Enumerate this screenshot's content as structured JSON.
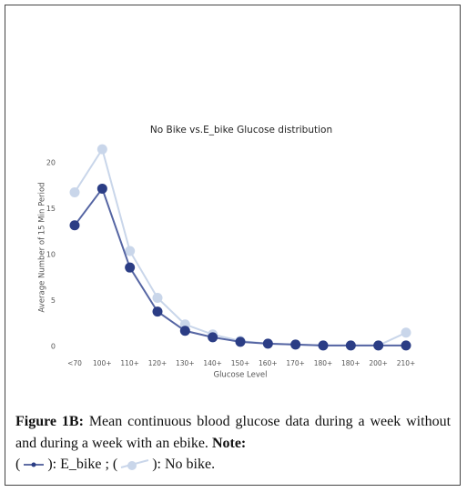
{
  "chart_data": {
    "type": "line",
    "title": "No Bike vs.E_bike Glucose distribution",
    "x_label": "Glucose Level",
    "y_label": "Average Number of 15 Min Period",
    "categories": [
      "<70",
      "100+",
      "110+",
      "120+",
      "130+",
      "140+",
      "150+",
      "160+",
      "170+",
      "180+",
      "180+",
      "200+",
      "210+"
    ],
    "series": [
      {
        "name": "No bike",
        "color": "#c9d6ea",
        "values": [
          16.8,
          21.5,
          10.4,
          5.3,
          2.4,
          1.3,
          0.6,
          0.3,
          0.2,
          0.1,
          0.1,
          0.1,
          1.5
        ]
      },
      {
        "name": "E_bike",
        "color": "#2b3d85",
        "values": [
          13.2,
          17.2,
          8.6,
          3.8,
          1.7,
          1.0,
          0.5,
          0.3,
          0.2,
          0.1,
          0.1,
          0.1,
          0.1
        ]
      }
    ],
    "ylim": [
      -0.9,
      22.4
    ],
    "yticks": [
      0,
      5,
      10,
      15,
      20
    ],
    "grid": false
  },
  "caption": {
    "label": "Figure 1B:",
    "text": "Mean continuous blood glucose data during a week without and during a week with an ebike.",
    "note_label": "Note:",
    "punct": [
      "(",
      "): ",
      " ; (",
      "): ",
      "."
    ]
  }
}
